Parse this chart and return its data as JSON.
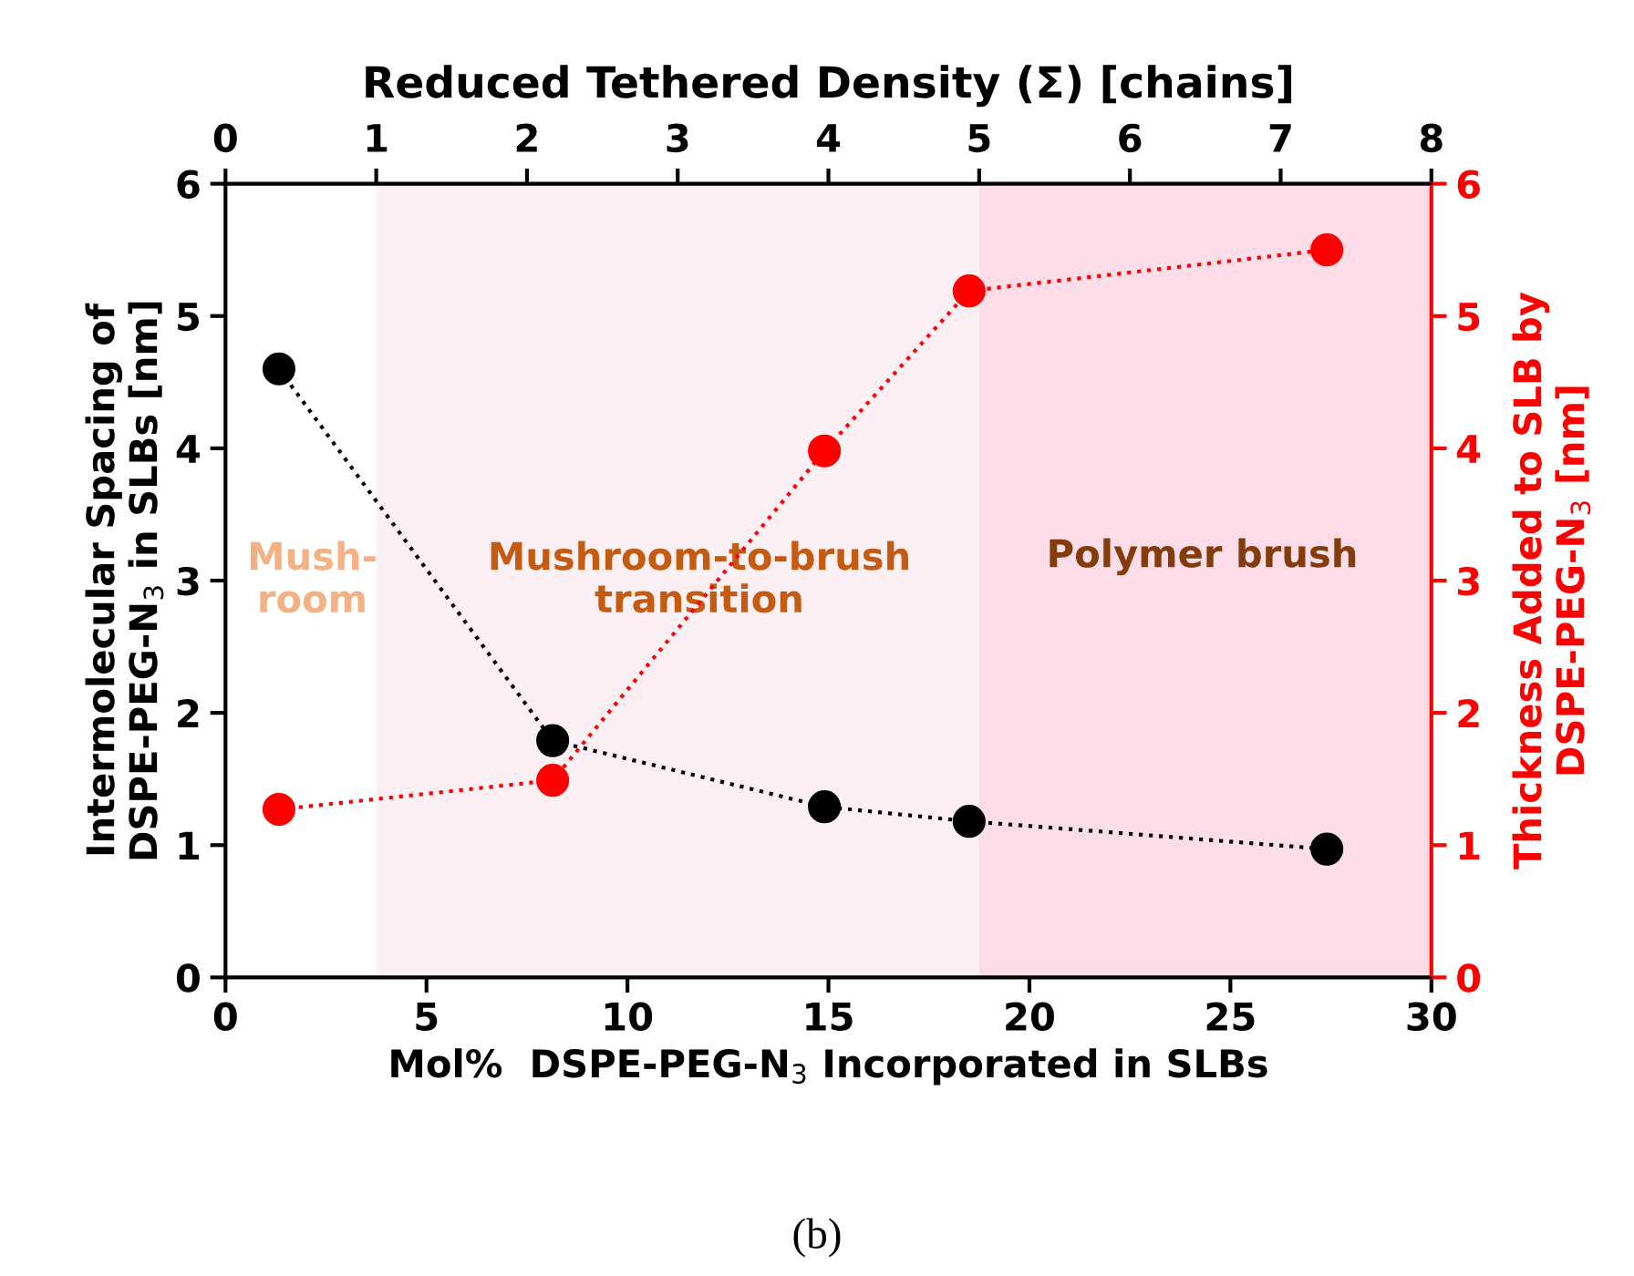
{
  "chart_data": {
    "type": "line",
    "x2label": "Reduced Tethered Density (Σ) [chains]",
    "xlabel": "Mol%  DSPE-PEG-N$_{3}$ Incorporated in SLBs",
    "ylabel": "Intermolecular Spacing of\nDSPE-PEG-N$_{3}$ in SLBs [nm]",
    "y2label": "Thickness Added to SLB by\nDSPE-PEG-N$_{3}$ [nm]",
    "x": [
      1.33,
      8.14,
      14.9,
      18.5,
      27.4
    ],
    "series": [
      {
        "color": "#000000",
        "values": [
          4.6,
          1.79,
          1.29,
          1.18,
          0.97
        ]
      },
      {
        "color": "#ff0000",
        "axis": "y2",
        "values": [
          1.27,
          1.49,
          3.98,
          5.19,
          5.5
        ]
      }
    ],
    "marker": "circle",
    "line_style": "dotted",
    "xlim": [
      0,
      30
    ],
    "xticks": [
      0,
      5,
      10,
      15,
      20,
      25,
      30
    ],
    "x2lim": [
      0,
      8
    ],
    "x2ticks": [
      0,
      1,
      2,
      3,
      4,
      5,
      6,
      7,
      8
    ],
    "ylim": [
      0,
      6
    ],
    "yticks": [
      0,
      1,
      2,
      3,
      4,
      5,
      6
    ],
    "y2lim": [
      0,
      6
    ],
    "y2ticks": [
      0,
      1,
      2,
      3,
      4,
      5,
      6
    ],
    "bands": [
      {
        "axis": "x2",
        "from": 1,
        "to": 5,
        "color": "#fdf0f5"
      },
      {
        "axis": "x2",
        "from": 5,
        "to": 8,
        "color": "#fcdde8"
      }
    ],
    "annotations": [
      "Mush-\nroom",
      "Mushroom-to-brush\ntransition",
      "Polymer brush",
      "(b)"
    ],
    "grid": false,
    "legend": false
  }
}
